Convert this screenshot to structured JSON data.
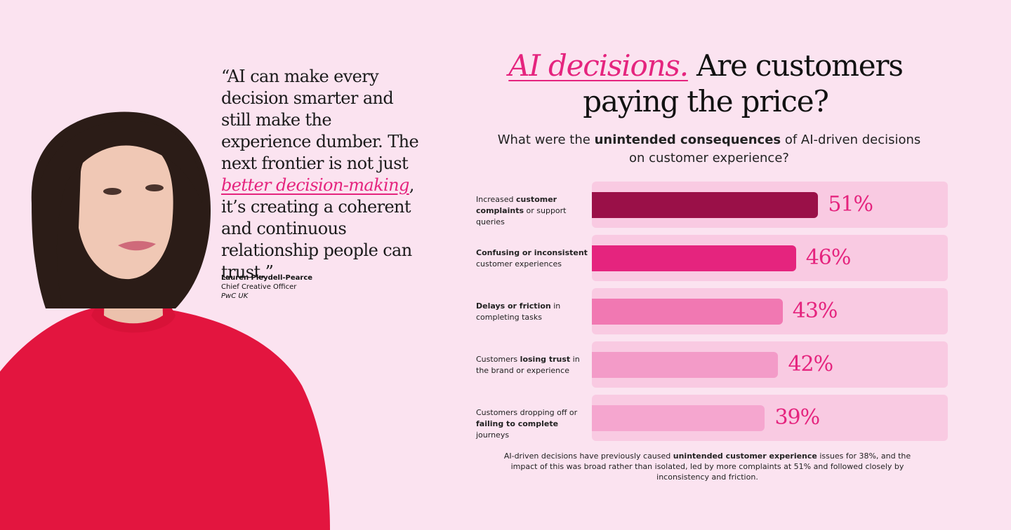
{
  "quote": {
    "before": "“AI can make every decision smarter and still make the experience dumber. The next frontier is not just ",
    "highlight": "better decision-making",
    "after": ", it’s creating a coherent and continuous relationship people can trust.”",
    "author": "Lauren Pleydell-Pearce",
    "role": "Chief Creative Officer",
    "organization": "PwC UK"
  },
  "heading": {
    "accent": "AI decisions.",
    "rest": " Are customers paying the price?"
  },
  "subtitle": {
    "before": "What were the ",
    "bold": "unintended consequences",
    "after": " of AI-driven decisions on customer experience?"
  },
  "colors": {
    "background": "#fbe3f0",
    "accent": "#e5247e",
    "track": "#f9cae2",
    "bars": [
      "#9a1048",
      "#e5247e",
      "#f178b2",
      "#f39bc8",
      "#f5a6cf"
    ]
  },
  "chart_data": {
    "type": "bar",
    "orientation": "horizontal",
    "unit": "%",
    "xlim": [
      0,
      100
    ],
    "categories": [
      "Increased customer complaints or support queries",
      "Confusing or inconsistent customer experiences",
      "Delays or friction in completing tasks",
      "Customers losing trust in the brand or experience",
      "Customers dropping off or failing to complete journeys"
    ],
    "labels": [
      [
        {
          "t": "Increased ",
          "b": false
        },
        {
          "t": "customer complaints",
          "b": true
        },
        {
          "t": " or support queries",
          "b": false
        }
      ],
      [
        {
          "t": "Confusing or inconsistent",
          "b": true
        },
        {
          "t": " customer experiences",
          "b": false
        }
      ],
      [
        {
          "t": "Delays or friction",
          "b": true
        },
        {
          "t": " in completing tasks",
          "b": false
        }
      ],
      [
        {
          "t": "Customers ",
          "b": false
        },
        {
          "t": "losing trust",
          "b": true
        },
        {
          "t": " in the brand or experience",
          "b": false
        }
      ],
      [
        {
          "t": "Customers dropping off or ",
          "b": false
        },
        {
          "t": "failing to complete",
          "b": true
        },
        {
          "t": " journeys",
          "b": false
        }
      ]
    ],
    "values": [
      51,
      46,
      43,
      42,
      39
    ],
    "value_labels": [
      "51%",
      "46%",
      "43%",
      "42%",
      "39%"
    ]
  },
  "footnote": {
    "before": "AI-driven decisions have previously caused ",
    "bold": "unintended customer experience",
    "after": " issues for 38%, and the impact of this was broad rather than isolated, led by more complaints at 51% and followed closely by inconsistency and friction."
  },
  "icons": {
    "portrait": "person-portrait-icon"
  }
}
